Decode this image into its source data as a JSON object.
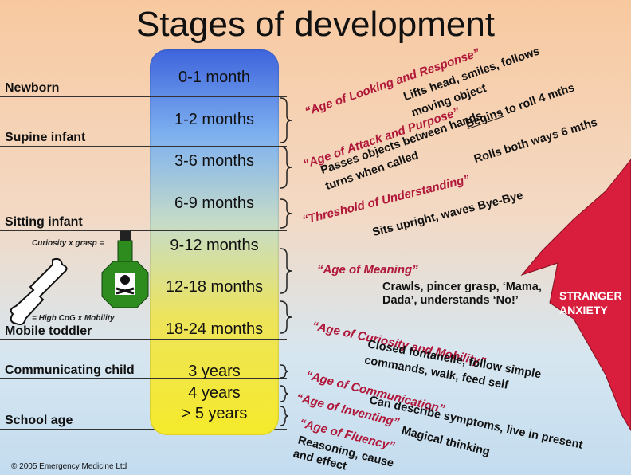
{
  "title": "Stages of development",
  "copyright": "© 2005 Emergency Medicine Ltd",
  "ages": [
    "0-1 month",
    "1-2 months",
    "3-6 months",
    "6-9 months",
    "9-12 months",
    "12-18 months",
    "18-24 months",
    "3 years",
    "4 years",
    "> 5 years"
  ],
  "stages": [
    "Newborn",
    "Supine infant",
    "Sitting infant",
    "Mobile toddler",
    "Communicating child",
    "School age"
  ],
  "epochs": [
    "“Age of Looking and Response”",
    "“Age of Attack and Purpose”",
    "“Threshold of Understanding”",
    "“Age of Meaning”",
    "“Age of Curiosity and Mobility”",
    "“Age of Communication”",
    "“Age of Inventing”",
    "“Age of Fluency”"
  ],
  "milestones": {
    "looking_1": "Lifts head, smiles, follows",
    "looking_2": "moving object",
    "attack_begins": "Begins",
    "attack_roll4": " to roll 4 mths",
    "attack_passes": "Passes objects between hands,",
    "attack_turns": "turns when called",
    "attack_roll6": "Rolls both ways 6 mths",
    "threshold": "Sits upright, waves Bye-Bye",
    "meaning_1": "Crawls, pincer grasp, ‘Mama,",
    "meaning_2": "Dada’, understands ‘No!’",
    "curiosity_1": "Closed fontanelle, follow simple",
    "curiosity_2": "commands, walk, feed self",
    "communication": "Can describe symptoms, live in present",
    "inventing": "Magical thinking",
    "fluency_1": "Reasoning, cause",
    "fluency_2": "and effect"
  },
  "curiosity_label": "Curiosity x grasp =",
  "mobility_label": "= High CoG x Mobility",
  "stranger_1": "STRANGER",
  "stranger_2": "ANXIETY",
  "colors": {
    "epoch": "#b0183a",
    "stranger": "#d81e3c",
    "poison": "#2e8b1e"
  }
}
